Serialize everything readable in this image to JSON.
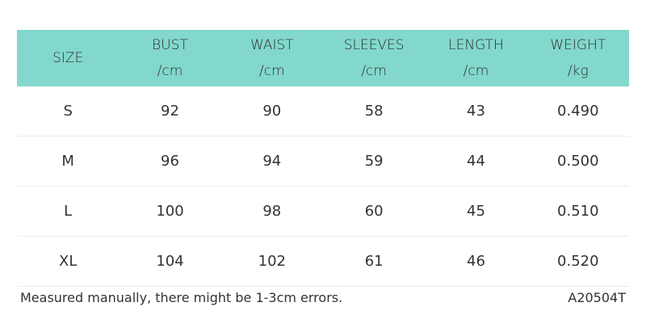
{
  "colors": {
    "header_bg": "#82d8cc",
    "text": "#333333"
  },
  "table": {
    "headers": [
      {
        "line1": "SIZE",
        "line2": ""
      },
      {
        "line1": "BUST",
        "line2": "/cm"
      },
      {
        "line1": "WAIST",
        "line2": "/cm"
      },
      {
        "line1": "SLEEVES",
        "line2": "/cm"
      },
      {
        "line1": "LENGTH",
        "line2": "/cm"
      },
      {
        "line1": "WEIGHT",
        "line2": "/kg"
      }
    ],
    "rows": [
      [
        "S",
        "92",
        "90",
        "58",
        "43",
        "0.490"
      ],
      [
        "M",
        "96",
        "94",
        "59",
        "44",
        "0.500"
      ],
      [
        "L",
        "100",
        "98",
        "60",
        "45",
        "0.510"
      ],
      [
        "XL",
        "104",
        "102",
        "61",
        "46",
        "0.520"
      ]
    ]
  },
  "footer": {
    "note": "Measured manually, there might be 1-3cm errors.",
    "code": "A20504T"
  }
}
